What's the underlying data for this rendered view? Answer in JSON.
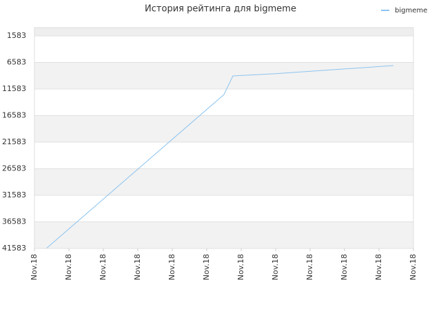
{
  "chart_data": {
    "type": "line",
    "title": "История рейтинга для bigmeme",
    "categories": [
      "Nov.18",
      "Nov.18",
      "Nov.18",
      "Nov.18",
      "Nov.18",
      "Nov.18",
      "Nov.18",
      "Nov.18",
      "Nov.18",
      "Nov.18",
      "Nov.18",
      "Nov.18"
    ],
    "series": [
      {
        "name": "bigmeme",
        "color": "#8cc4f0",
        "x": [
          0.36,
          5.5,
          5.76,
          7,
          10.42
        ],
        "values": [
          41500,
          12623,
          9116,
          8700,
          7168
        ]
      }
    ],
    "ylim": [
      41583,
      25
    ],
    "yticks": [
      41583,
      36583,
      31583,
      26583,
      21583,
      16583,
      11583,
      6583,
      1583
    ],
    "grid": true,
    "legend": "top-right"
  }
}
